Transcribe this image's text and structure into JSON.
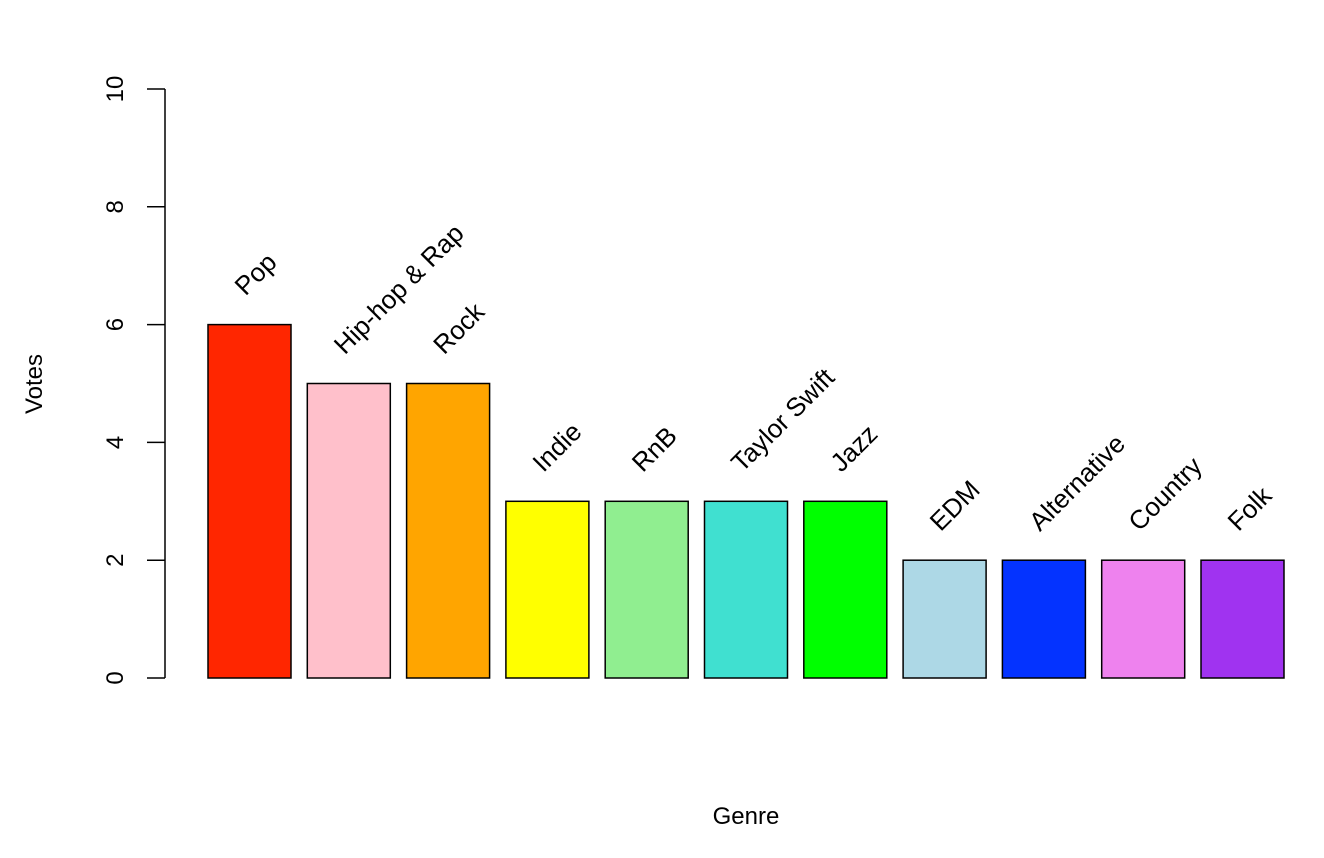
{
  "chart_data": {
    "type": "bar",
    "xlabel": "Genre",
    "ylabel": "Votes",
    "ylim": [
      0,
      10
    ],
    "yticks": [
      0,
      2,
      4,
      6,
      8,
      10
    ],
    "categories": [
      "Pop",
      "Hip-hop & Rap",
      "Rock",
      "Indie",
      "RnB",
      "Taylor Swift",
      "Jazz",
      "EDM",
      "Alternative",
      "Country",
      "Folk"
    ],
    "values": [
      6,
      5,
      5,
      3,
      3,
      3,
      3,
      2,
      2,
      2,
      2
    ],
    "colors": [
      "#ff2600",
      "#ffc0cb",
      "#ffa500",
      "#ffff00",
      "#90ee90",
      "#40e0d0",
      "#00ff00",
      "#add8e6",
      "#0433ff",
      "#ee82ee",
      "#a033f0"
    ],
    "grid": false,
    "legend": "none",
    "bar_labels": "rotated category names above bars"
  }
}
